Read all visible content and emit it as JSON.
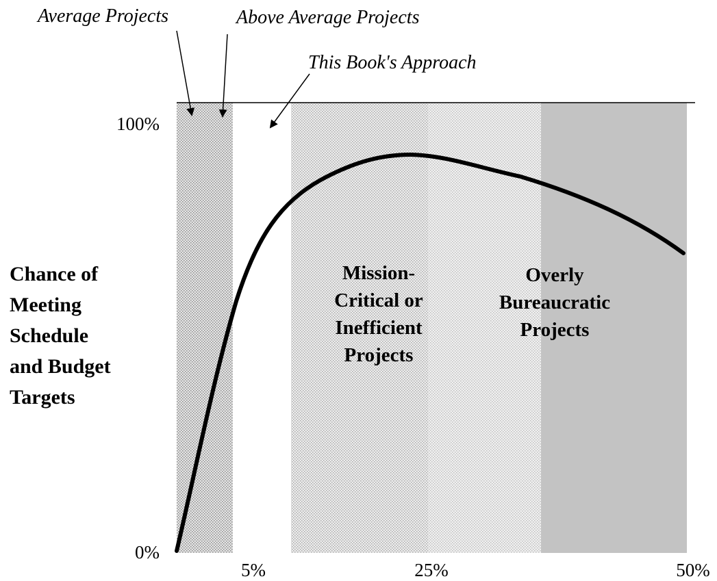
{
  "annotations": [
    "Average Projects",
    "Above Average Projects",
    "This Book's Approach"
  ],
  "y_axis": {
    "label": [
      "Chance of",
      "Meeting",
      "Schedule",
      "and Budget",
      "Targets"
    ],
    "ticks": [
      "100%",
      "0%"
    ]
  },
  "x_axis": {
    "ticks": [
      "5%",
      "25%",
      "50%"
    ]
  },
  "regions": [
    {
      "label": [
        "Mission-",
        "Critical or",
        "Inefficient",
        "Projects"
      ]
    },
    {
      "label": [
        "Overly",
        "Bureaucratic",
        "Projects"
      ]
    }
  ]
}
